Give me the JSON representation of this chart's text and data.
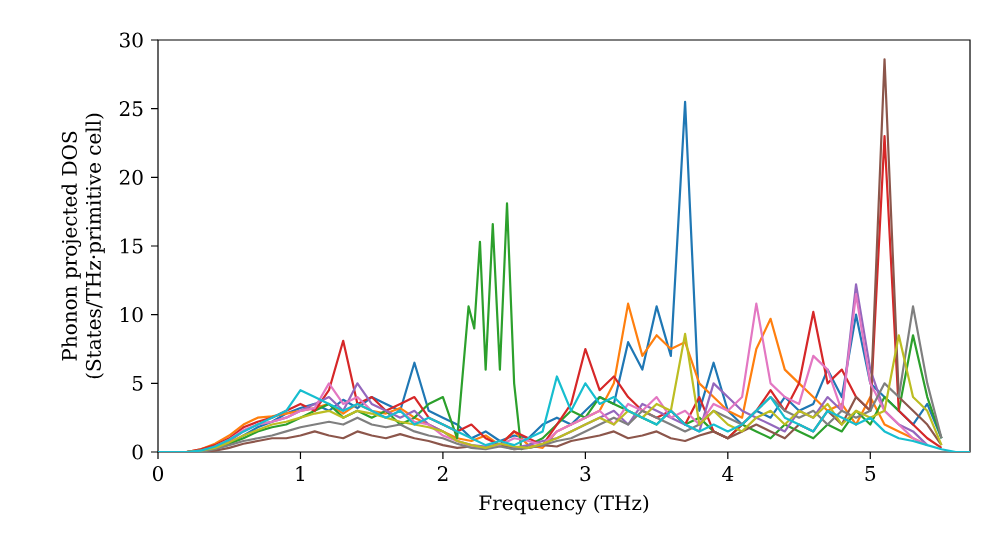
{
  "chart_data": {
    "type": "line",
    "xlabel": "Frequency (THz)",
    "ylabel": "Phonon projected DOS\n(States/THz·primitive cell)",
    "xlim": [
      0,
      5.7
    ],
    "ylim": [
      0,
      30
    ],
    "xticks": [
      0,
      1,
      2,
      3,
      4,
      5
    ],
    "yticks": [
      0,
      5,
      10,
      15,
      20,
      25,
      30
    ],
    "grid": false,
    "marker": "none",
    "line_style": "solid",
    "x": [
      0,
      0.1,
      0.2,
      0.3,
      0.4,
      0.5,
      0.6,
      0.7,
      0.8,
      0.9,
      1.0,
      1.1,
      1.2,
      1.3,
      1.4,
      1.5,
      1.6,
      1.7,
      1.8,
      1.9,
      2.0,
      2.1,
      2.2,
      2.3,
      2.4,
      2.5,
      2.6,
      2.7,
      2.8,
      2.9,
      3.0,
      3.1,
      3.2,
      3.3,
      3.4,
      3.5,
      3.6,
      3.7,
      3.8,
      3.9,
      4.0,
      4.1,
      4.2,
      4.3,
      4.4,
      4.5,
      4.6,
      4.7,
      4.8,
      4.9,
      5.0,
      5.1,
      5.2,
      5.3,
      5.4,
      5.5,
      5.6,
      5.7
    ],
    "series": [
      {
        "color": "#1f77b4",
        "values": [
          null,
          null,
          0,
          0.1,
          0.3,
          0.6,
          1.2,
          1.8,
          2.2,
          2.8,
          3.2,
          3.5,
          3.0,
          3.8,
          3.2,
          4.0,
          3.5,
          3.0,
          6.5,
          3.0,
          2.5,
          2.0,
          1.0,
          1.5,
          0.8,
          1.2,
          1.0,
          2.0,
          2.5,
          2.0,
          3.0,
          4.0,
          3.5,
          8.0,
          6.0,
          10.6,
          7.0,
          25.5,
          3.0,
          6.5,
          3.0,
          2.0,
          3.0,
          2.5,
          4.0,
          3.0,
          3.5,
          6.0,
          4.0,
          10.0,
          5.0,
          4.0,
          3.0,
          2.0,
          3.5,
          1.0,
          null,
          null
        ]
      },
      {
        "color": "#ff7f0e",
        "values": [
          null,
          null,
          0,
          0.2,
          0.6,
          1.2,
          2.0,
          2.5,
          2.6,
          2.8,
          3.0,
          3.2,
          3.5,
          2.8,
          3.5,
          3.0,
          2.8,
          3.2,
          2.5,
          2.0,
          1.5,
          1.0,
          0.8,
          1.2,
          0.5,
          1.5,
          0.5,
          0.3,
          1.5,
          2.0,
          2.5,
          3.0,
          5.0,
          10.8,
          7.0,
          8.5,
          7.5,
          8.0,
          5.0,
          4.0,
          3.0,
          2.5,
          7.5,
          9.7,
          6.0,
          5.0,
          4.0,
          3.0,
          3.5,
          2.0,
          4.0,
          2.0,
          1.5,
          1.0,
          0.5,
          null,
          null,
          null
        ]
      },
      {
        "color": "#2ca02c",
        "x": [
          0.2,
          0.3,
          0.4,
          0.5,
          0.6,
          0.7,
          0.8,
          0.9,
          1.0,
          1.1,
          1.2,
          1.3,
          1.4,
          1.5,
          1.6,
          1.7,
          1.8,
          1.9,
          2.0,
          2.1,
          2.18,
          2.22,
          2.26,
          2.3,
          2.35,
          2.4,
          2.45,
          2.5,
          2.55,
          2.6,
          2.7,
          2.8,
          2.9,
          3.0,
          3.1,
          3.2,
          3.3,
          3.4,
          3.5,
          3.6,
          3.7,
          3.8,
          3.9,
          4.0,
          4.1,
          4.2,
          4.3,
          4.4,
          4.5,
          4.6,
          4.7,
          4.8,
          4.9,
          5.0,
          5.1,
          5.2,
          5.3,
          5.4,
          5.5
        ],
        "values": [
          0,
          0.1,
          0.3,
          0.6,
          1.0,
          1.5,
          1.8,
          2.0,
          2.5,
          3.0,
          3.5,
          2.5,
          3.0,
          2.5,
          3.0,
          2.0,
          2.5,
          3.5,
          4.0,
          1.0,
          10.6,
          9.0,
          15.3,
          6.0,
          16.6,
          6.0,
          18.1,
          5.0,
          0.2,
          0.5,
          1.0,
          2.0,
          3.0,
          2.5,
          4.0,
          3.5,
          3.0,
          2.5,
          2.0,
          3.0,
          2.0,
          2.5,
          1.5,
          1.0,
          2.0,
          1.5,
          1.0,
          2.0,
          1.5,
          1.0,
          2.0,
          1.5,
          3.0,
          2.0,
          4.0,
          3.0,
          8.5,
          4.0,
          1.0
        ]
      },
      {
        "color": "#d62728",
        "values": [
          null,
          null,
          0,
          0.2,
          0.5,
          1.0,
          1.8,
          2.2,
          2.5,
          3.0,
          3.5,
          3.0,
          4.5,
          8.1,
          3.5,
          4.0,
          3.0,
          3.5,
          4.0,
          2.5,
          2.0,
          1.5,
          2.0,
          1.0,
          0.5,
          1.5,
          1.0,
          0.5,
          2.0,
          3.5,
          7.5,
          4.5,
          5.5,
          4.0,
          3.0,
          2.5,
          3.0,
          2.0,
          4.0,
          1.5,
          1.0,
          2.0,
          3.0,
          4.5,
          3.0,
          5.0,
          10.2,
          5.0,
          6.0,
          4.0,
          3.0,
          23.0,
          3.0,
          2.0,
          1.0,
          0.3,
          null,
          null
        ]
      },
      {
        "color": "#9467bd",
        "values": [
          null,
          null,
          0,
          0.1,
          0.3,
          0.8,
          1.5,
          2.0,
          2.2,
          2.5,
          3.0,
          3.5,
          4.0,
          3.0,
          5.0,
          3.5,
          3.0,
          2.5,
          3.0,
          2.0,
          1.5,
          0.8,
          0.5,
          0.4,
          0.6,
          0.3,
          0.5,
          0.8,
          1.0,
          1.5,
          2.0,
          2.5,
          3.0,
          2.0,
          3.5,
          3.0,
          2.5,
          2.0,
          1.5,
          5.0,
          4.0,
          3.0,
          2.5,
          2.0,
          1.5,
          3.0,
          2.5,
          4.0,
          3.0,
          12.2,
          6.0,
          3.0,
          2.0,
          1.5,
          0.5,
          null,
          null,
          null
        ]
      },
      {
        "color": "#8c564b",
        "values": [
          null,
          null,
          0,
          0,
          0.1,
          0.3,
          0.6,
          0.8,
          1.0,
          1.0,
          1.2,
          1.5,
          1.2,
          1.0,
          1.5,
          1.2,
          1.0,
          1.3,
          1.0,
          0.8,
          0.5,
          0.3,
          0.4,
          0.3,
          0.5,
          0.2,
          0.3,
          0.5,
          0.4,
          0.8,
          1.0,
          1.2,
          1.5,
          1.0,
          1.2,
          1.5,
          1.0,
          0.8,
          1.2,
          1.5,
          1.0,
          1.5,
          2.0,
          1.5,
          1.0,
          2.0,
          1.5,
          3.0,
          2.0,
          4.0,
          3.0,
          28.6,
          4.0,
          3.0,
          2.0,
          0.5,
          null,
          null
        ]
      },
      {
        "color": "#e377c2",
        "values": [
          null,
          null,
          null,
          null,
          0.4,
          0.9,
          1.6,
          2.0,
          2.2,
          2.5,
          3.0,
          3.2,
          5.0,
          3.5,
          4.0,
          3.0,
          2.5,
          3.0,
          2.2,
          2.0,
          1.2,
          0.8,
          0.4,
          0.3,
          0.5,
          1.0,
          0.8,
          0.5,
          1.5,
          2.0,
          2.5,
          3.0,
          2.0,
          3.5,
          3.0,
          4.0,
          2.5,
          3.0,
          2.0,
          3.5,
          3.0,
          4.0,
          10.8,
          5.0,
          4.0,
          3.5,
          7.0,
          6.0,
          3.0,
          11.5,
          5.0,
          3.0,
          2.0,
          1.0,
          0.5,
          null,
          null,
          null
        ]
      },
      {
        "color": "#7f7f7f",
        "values": [
          null,
          null,
          0,
          0,
          0.2,
          0.5,
          0.8,
          1.0,
          1.2,
          1.5,
          1.8,
          2.0,
          2.2,
          2.0,
          2.5,
          2.0,
          1.8,
          2.0,
          1.5,
          1.2,
          1.0,
          0.6,
          0.3,
          0.2,
          0.4,
          0.2,
          0.3,
          0.5,
          0.8,
          1.0,
          1.5,
          2.0,
          2.5,
          2.0,
          3.0,
          2.5,
          2.0,
          1.5,
          2.0,
          3.0,
          2.5,
          2.0,
          3.0,
          4.0,
          3.0,
          2.5,
          3.0,
          2.0,
          3.0,
          2.5,
          3.0,
          5.0,
          4.0,
          10.6,
          5.0,
          1.0,
          null,
          null
        ]
      },
      {
        "color": "#bcbd22",
        "values": [
          null,
          null,
          0,
          0.1,
          0.3,
          0.7,
          1.2,
          1.6,
          2.0,
          2.2,
          2.5,
          2.8,
          3.0,
          2.5,
          3.0,
          2.8,
          2.5,
          2.2,
          2.0,
          1.8,
          1.5,
          0.8,
          0.5,
          0.3,
          0.6,
          0.4,
          0.3,
          0.6,
          1.0,
          1.5,
          2.0,
          2.5,
          2.0,
          3.0,
          2.5,
          3.5,
          3.0,
          8.6,
          2.0,
          3.0,
          2.0,
          1.5,
          2.5,
          3.0,
          2.0,
          3.0,
          2.5,
          3.5,
          2.0,
          3.0,
          2.5,
          3.0,
          8.5,
          4.0,
          3.0,
          0.5,
          null,
          null
        ]
      },
      {
        "color": "#17becf",
        "values": [
          0,
          0,
          0,
          0.1,
          0.4,
          0.9,
          1.5,
          2.0,
          2.5,
          3.0,
          4.5,
          4.0,
          3.5,
          3.0,
          3.5,
          3.0,
          2.5,
          3.0,
          2.0,
          2.5,
          2.0,
          1.5,
          1.0,
          0.5,
          0.8,
          0.5,
          1.0,
          1.5,
          5.5,
          3.0,
          5.0,
          3.5,
          4.0,
          3.0,
          2.5,
          2.0,
          3.0,
          2.0,
          1.5,
          2.0,
          1.5,
          2.0,
          3.0,
          4.0,
          2.5,
          2.0,
          1.5,
          3.0,
          2.5,
          2.0,
          2.5,
          1.5,
          1.0,
          0.8,
          0.5,
          0.2,
          0,
          0
        ]
      }
    ]
  }
}
